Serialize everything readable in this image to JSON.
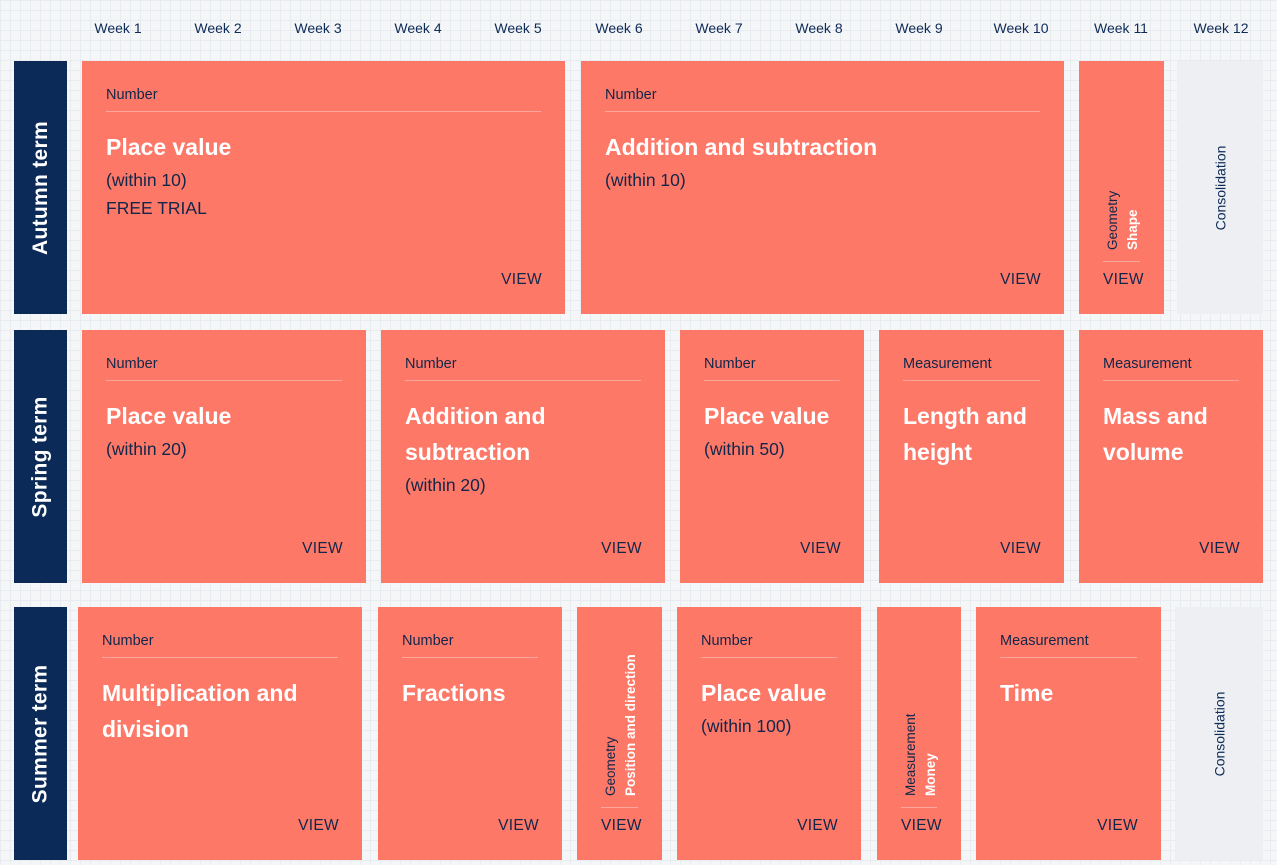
{
  "weeks": [
    "Week 1",
    "Week 2",
    "Week 3",
    "Week 4",
    "Week 5",
    "Week 6",
    "Week 7",
    "Week 8",
    "Week 9",
    "Week 10",
    "Week 11",
    "Week 12"
  ],
  "view_label": "VIEW",
  "terms": {
    "autumn": {
      "label": "Autumn term",
      "blocks": [
        {
          "category": "Number",
          "title": "Place value",
          "subtitle": "(within 10)",
          "extra": "FREE TRIAL"
        },
        {
          "category": "Number",
          "title": "Addition and subtraction",
          "subtitle": "(within 10)"
        },
        {
          "category": "Geometry",
          "title": "Shape"
        },
        {
          "title": "Consolidation"
        }
      ]
    },
    "spring": {
      "label": "Spring term",
      "blocks": [
        {
          "category": "Number",
          "title": "Place value",
          "subtitle": "(within 20)"
        },
        {
          "category": "Number",
          "title": "Addition and subtraction",
          "subtitle": "(within 20)"
        },
        {
          "category": "Number",
          "title": "Place value",
          "subtitle": "(within 50)"
        },
        {
          "category": "Measurement",
          "title": "Length and height"
        },
        {
          "category": "Measurement",
          "title": "Mass and volume"
        }
      ]
    },
    "summer": {
      "label": "Summer term",
      "blocks": [
        {
          "category": "Number",
          "title": "Multiplication and division"
        },
        {
          "category": "Number",
          "title": "Fractions"
        },
        {
          "category": "Geometry",
          "title": "Position and direction"
        },
        {
          "category": "Number",
          "title": "Place value",
          "subtitle": "(within 100)"
        },
        {
          "category": "Measurement",
          "title": "Money"
        },
        {
          "category": "Measurement",
          "title": "Time"
        },
        {
          "title": "Consolidation"
        }
      ]
    }
  },
  "colors": {
    "card": "#fe7868",
    "navy": "#0b2a57",
    "consolidation": "#edeff2"
  }
}
